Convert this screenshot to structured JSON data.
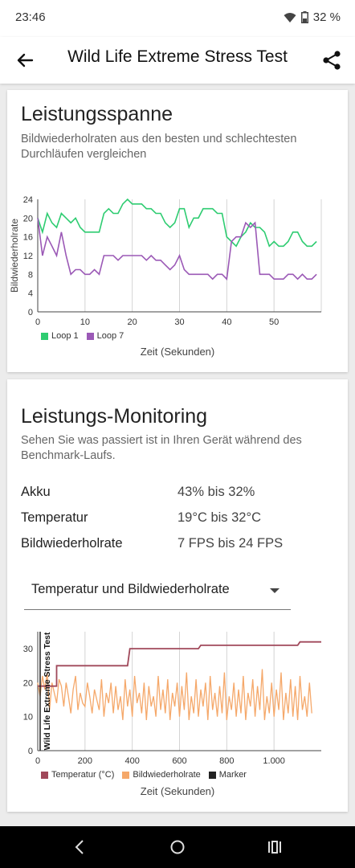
{
  "status": {
    "time": "23:46",
    "battery": "32 %"
  },
  "appbar": {
    "title": "Wild Life Extreme Stress Test"
  },
  "range_card": {
    "title": "Leistungsspanne",
    "description": "Bildwiederholraten aus den besten und schlechtesten Durchläufen vergleichen",
    "chart_data": {
      "type": "line",
      "ylabel": "Bildwiederholrate",
      "xlabel": "Zeit (Sekunden)",
      "xlim": [
        0,
        60
      ],
      "ylim": [
        0,
        24
      ],
      "xticks": [
        "0",
        "10",
        "20",
        "30",
        "40",
        "50"
      ],
      "yticks": [
        "0",
        "4",
        "8",
        "12",
        "16",
        "20",
        "24"
      ],
      "grid": "vertical",
      "legend_position": "bottom-left",
      "series": [
        {
          "name": "Loop 1",
          "color": "#2ecc71",
          "x": [
            0,
            1,
            2,
            3,
            4,
            5,
            6,
            7,
            8,
            9,
            10,
            11,
            12,
            13,
            14,
            15,
            16,
            17,
            18,
            19,
            20,
            21,
            22,
            23,
            24,
            25,
            26,
            27,
            28,
            29,
            30,
            31,
            32,
            33,
            34,
            35,
            36,
            37,
            38,
            39,
            40,
            41,
            42,
            43,
            44,
            45,
            46,
            47,
            48,
            49,
            50,
            51,
            52,
            53,
            54,
            55,
            56,
            57,
            58,
            59
          ],
          "values": [
            20,
            17,
            21,
            19,
            18,
            21,
            20,
            19,
            20,
            18,
            17,
            17,
            17,
            17,
            21,
            22,
            21,
            21,
            23,
            24,
            23,
            23,
            23,
            22,
            22,
            21,
            21,
            19,
            18,
            19,
            22,
            22,
            18,
            20,
            20,
            22,
            22,
            22,
            21,
            21,
            16,
            15,
            14,
            16,
            17,
            19,
            18,
            18,
            17,
            14,
            15,
            14,
            14,
            15,
            17,
            17,
            15,
            14,
            14,
            15
          ]
        },
        {
          "name": "Loop 7",
          "color": "#9b59b6",
          "x": [
            0,
            1,
            2,
            3,
            4,
            5,
            6,
            7,
            8,
            9,
            10,
            11,
            12,
            13,
            14,
            15,
            16,
            17,
            18,
            19,
            20,
            21,
            22,
            23,
            24,
            25,
            26,
            27,
            28,
            29,
            30,
            31,
            32,
            33,
            34,
            35,
            36,
            37,
            38,
            39,
            40,
            41,
            42,
            43,
            44,
            45,
            46,
            47,
            48,
            49,
            50,
            51,
            52,
            53,
            54,
            55,
            56,
            57,
            58,
            59
          ],
          "values": [
            20,
            12,
            16,
            14,
            12,
            17,
            12,
            8,
            9,
            9,
            8,
            8,
            9,
            8,
            12,
            12,
            12,
            11,
            12,
            12,
            12,
            12,
            12,
            11,
            12,
            11,
            11,
            10,
            9,
            10,
            12,
            9,
            8,
            8,
            8,
            8,
            8,
            7,
            8,
            8,
            7,
            15,
            16,
            16,
            19,
            18,
            19,
            8,
            8,
            8,
            7,
            7,
            7,
            8,
            8,
            7,
            8,
            7,
            7,
            8
          ]
        }
      ]
    }
  },
  "monitoring_card": {
    "title": "Leistungs-Monitoring",
    "description": "Sehen Sie was passiert ist in Ihren Gerät während des Benchmark-Laufs.",
    "stats": [
      {
        "label": "Akku",
        "value": "43% bis 32%"
      },
      {
        "label": "Temperatur",
        "value": "19°C bis 32°C"
      },
      {
        "label": "Bildwiederholrate",
        "value": "7 FPS bis 24 FPS"
      }
    ],
    "dropdown": {
      "selected": "Temperatur und Bildwiederholrate"
    },
    "chart_data": {
      "type": "line",
      "xlabel": "Zeit (Sekunden)",
      "xlim": [
        0,
        1200
      ],
      "ylim": [
        0,
        35
      ],
      "xticks": [
        "0",
        "200",
        "400",
        "600",
        "800",
        "1.000"
      ],
      "yticks": [
        "0",
        "10",
        "20",
        "30"
      ],
      "grid": "vertical",
      "marker_label": "Wild Life Extreme Stress Test",
      "legend_position": "bottom-left",
      "legend": [
        {
          "name": "Temperatur (°C)",
          "color": "#a0485a"
        },
        {
          "name": "Bildwiederholrate",
          "color": "#f5a86a"
        },
        {
          "name": "Marker",
          "color": "#222222"
        }
      ],
      "temperature": {
        "x": [
          0,
          50,
          80,
          80,
          380,
          390,
          680,
          690,
          1100,
          1110,
          1200
        ],
        "values": [
          19,
          19,
          19,
          25,
          25,
          30,
          30,
          31,
          31,
          32,
          32
        ]
      },
      "fps": {
        "x_step": 10,
        "values": [
          20,
          16,
          22,
          18,
          23,
          12,
          20,
          17,
          14,
          21,
          19,
          13,
          20,
          16,
          11,
          18,
          22,
          12,
          17,
          14,
          13,
          20,
          16,
          11,
          18,
          15,
          12,
          21,
          10,
          17,
          14,
          20,
          11,
          19,
          12,
          16,
          9,
          21,
          13,
          18,
          10,
          22,
          14,
          17,
          11,
          20,
          9,
          19,
          13,
          16,
          10,
          22,
          12,
          18,
          11,
          21,
          9,
          17,
          13,
          20,
          10,
          19,
          12,
          23,
          9,
          16,
          11,
          21,
          10,
          18,
          13,
          20,
          9,
          22,
          12,
          17,
          10,
          19,
          11,
          23,
          9,
          16,
          12,
          20,
          10,
          18,
          11,
          22,
          9,
          17,
          13,
          21,
          10,
          19,
          12,
          24,
          9,
          16,
          11,
          20,
          10,
          18,
          12,
          23,
          9,
          17,
          11,
          21,
          10,
          19,
          9,
          22,
          12,
          16,
          10,
          20,
          11
        ]
      },
      "marker_x": 0
    }
  }
}
